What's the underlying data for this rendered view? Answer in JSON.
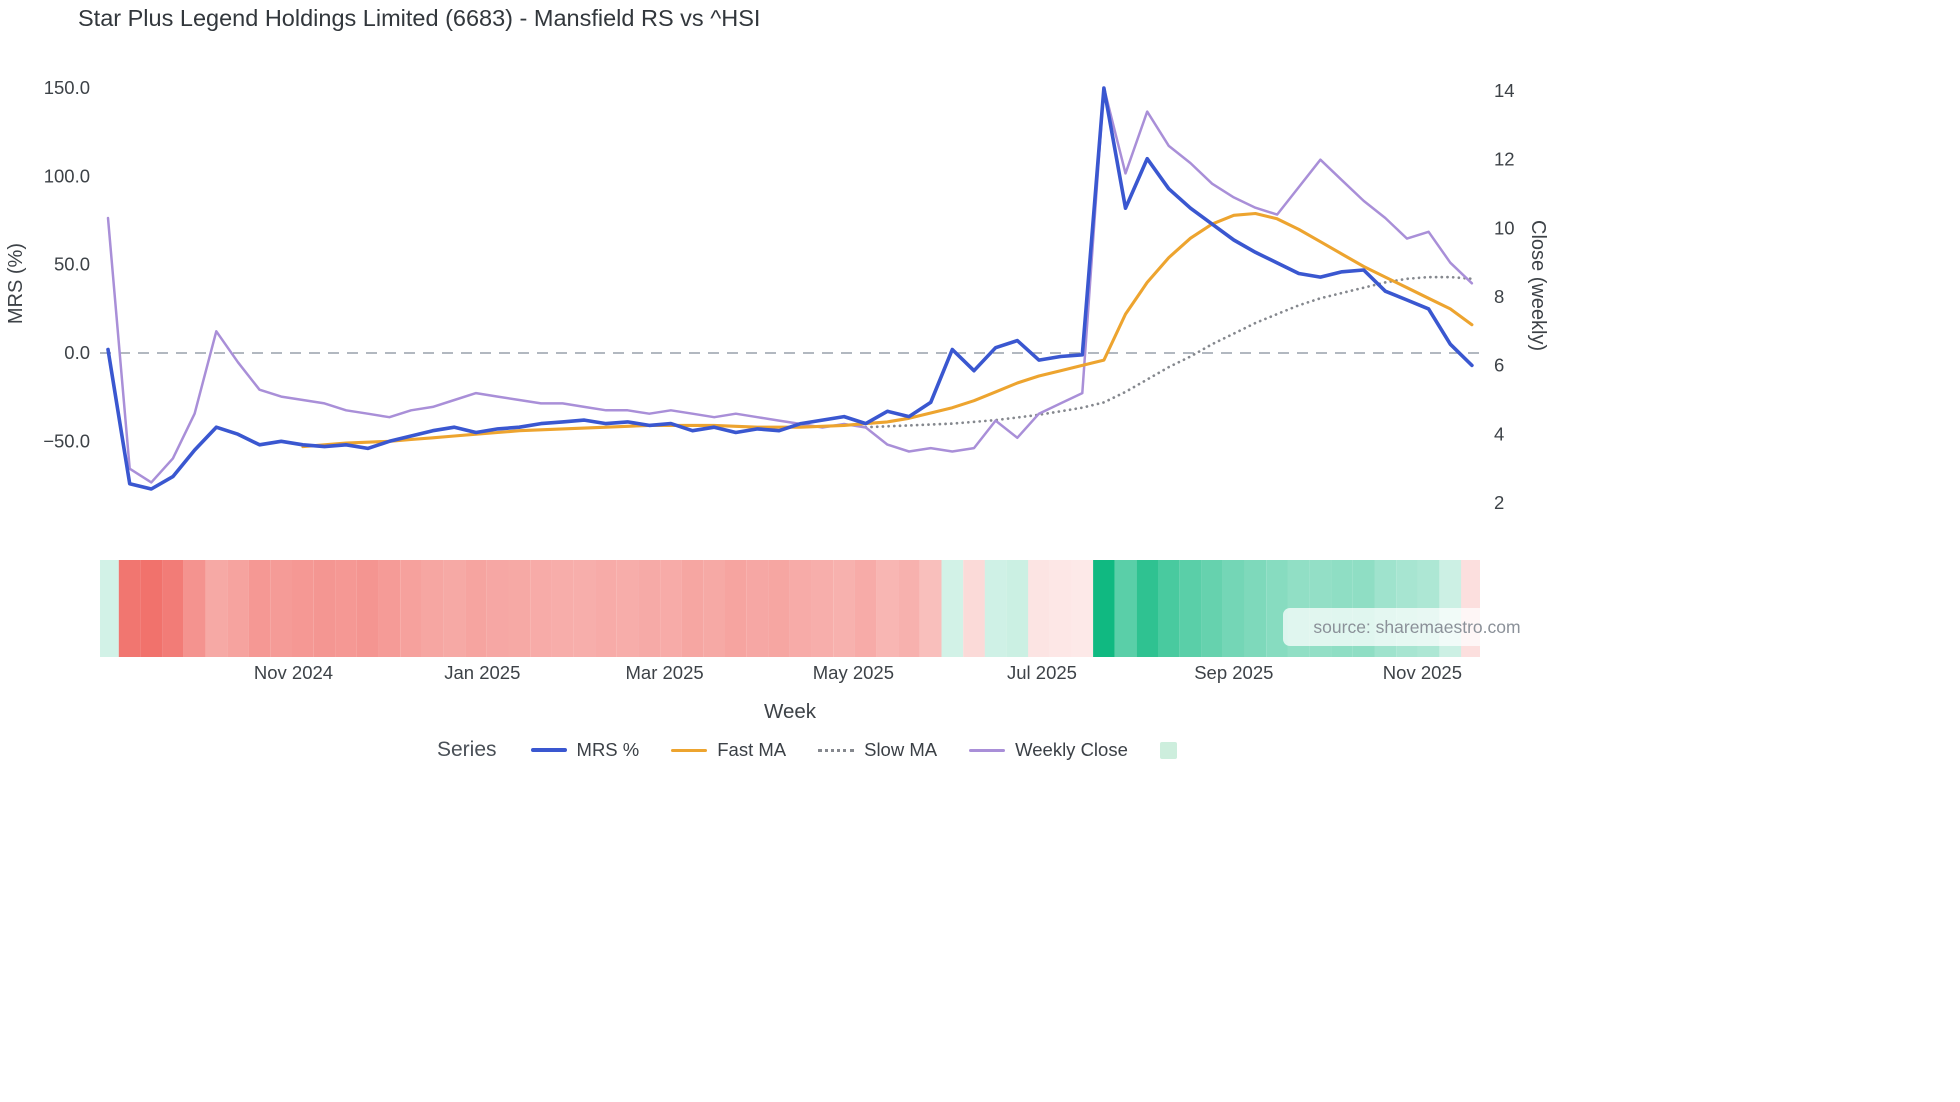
{
  "page": {
    "source_label": "source: sharemaestro.com"
  },
  "legend": {
    "series_title": "Series",
    "heatmap_swatch_color": "#cdeedd"
  },
  "chart_data": {
    "type": "line",
    "title": "Star Plus Legend Holdings Limited (6683) - Mansfield RS vs ^HSI",
    "xlabel": "Week",
    "ylabel_left": "MRS (%)",
    "ylabel_right": "Close (weekly)",
    "x_weekly_dates": [
      "2024-09-02",
      "2024-09-09",
      "2024-09-16",
      "2024-09-23",
      "2024-09-30",
      "2024-10-07",
      "2024-10-14",
      "2024-10-21",
      "2024-10-28",
      "2024-11-04",
      "2024-11-11",
      "2024-11-18",
      "2024-11-25",
      "2024-12-02",
      "2024-12-09",
      "2024-12-16",
      "2024-12-23",
      "2024-12-30",
      "2025-01-06",
      "2025-01-13",
      "2025-01-20",
      "2025-01-27",
      "2025-02-03",
      "2025-02-10",
      "2025-02-17",
      "2025-02-24",
      "2025-03-03",
      "2025-03-10",
      "2025-03-17",
      "2025-03-24",
      "2025-03-31",
      "2025-04-07",
      "2025-04-14",
      "2025-04-21",
      "2025-04-28",
      "2025-05-05",
      "2025-05-12",
      "2025-05-19",
      "2025-05-26",
      "2025-06-02",
      "2025-06-09",
      "2025-06-16",
      "2025-06-23",
      "2025-06-30",
      "2025-07-07",
      "2025-07-14",
      "2025-07-21",
      "2025-07-28",
      "2025-08-04",
      "2025-08-11",
      "2025-08-18",
      "2025-08-25",
      "2025-09-01",
      "2025-09-08",
      "2025-09-15",
      "2025-09-22",
      "2025-09-29",
      "2025-10-06",
      "2025-10-13",
      "2025-10-20",
      "2025-10-27",
      "2025-11-03",
      "2025-11-10",
      "2025-11-17"
    ],
    "series": [
      {
        "name": "MRS %",
        "axis": "left",
        "color": "#3a57d0",
        "line": "solid",
        "values": [
          2,
          -74,
          -77,
          -70,
          -55,
          -42,
          -46,
          -52,
          -50,
          -52,
          -53,
          -52,
          -54,
          -50,
          -47,
          -44,
          -42,
          -45,
          -43,
          -42,
          -40,
          -39,
          -38,
          -40,
          -39,
          -41,
          -40,
          -44,
          -42,
          -45,
          -43,
          -44,
          -40,
          -38,
          -36,
          -40,
          -33,
          -36,
          -28,
          2,
          -10,
          3,
          7,
          -4,
          -2,
          -1,
          150,
          82,
          110,
          93,
          82,
          73,
          64,
          57,
          51,
          45,
          43,
          46,
          47,
          35,
          30,
          25,
          5,
          -7
        ]
      },
      {
        "name": "Fast MA",
        "axis": "left",
        "color": "#eda42f",
        "line": "solid",
        "values": [
          null,
          null,
          null,
          null,
          null,
          null,
          null,
          null,
          null,
          -53,
          -52,
          -51,
          -50.5,
          -50,
          -49,
          -48,
          -47,
          -46,
          -45,
          -44,
          -43.5,
          -43,
          -42.5,
          -42,
          -41.5,
          -41,
          -41,
          -41,
          -41,
          -41.5,
          -42,
          -42,
          -42,
          -41.5,
          -41,
          -40,
          -39,
          -37,
          -34,
          -31,
          -27,
          -22,
          -17,
          -13,
          -10,
          -7,
          -4,
          22,
          40,
          54,
          65,
          73,
          78,
          79,
          76,
          70,
          63,
          56,
          49,
          43,
          37,
          31,
          25,
          16
        ]
      },
      {
        "name": "Slow MA",
        "axis": "left",
        "color": "#85888e",
        "line": "dotted",
        "values": [
          null,
          null,
          null,
          null,
          null,
          null,
          null,
          null,
          null,
          null,
          null,
          null,
          null,
          null,
          null,
          null,
          null,
          null,
          null,
          null,
          null,
          null,
          null,
          null,
          null,
          null,
          null,
          null,
          null,
          null,
          null,
          null,
          null,
          null,
          null,
          -42,
          -41.5,
          -41,
          -40.5,
          -40,
          -39,
          -38,
          -36.5,
          -35,
          -33,
          -31,
          -28,
          -22,
          -15,
          -8,
          -2,
          5,
          11,
          17,
          22,
          27,
          31,
          34,
          37,
          40,
          42,
          43,
          43,
          42
        ]
      },
      {
        "name": "Weekly Close",
        "axis": "right",
        "color": "#a98fd8",
        "line": "solid",
        "values": [
          10.3,
          3.0,
          2.6,
          3.3,
          4.6,
          7.0,
          6.1,
          5.3,
          5.1,
          5.0,
          4.9,
          4.7,
          4.6,
          4.5,
          4.7,
          4.8,
          5.0,
          5.2,
          5.1,
          5.0,
          4.9,
          4.9,
          4.8,
          4.7,
          4.7,
          4.6,
          4.7,
          4.6,
          4.5,
          4.6,
          4.5,
          4.4,
          4.3,
          4.2,
          4.3,
          4.2,
          3.7,
          3.5,
          3.6,
          3.5,
          3.6,
          4.4,
          3.9,
          4.6,
          4.9,
          5.2,
          14.1,
          11.6,
          13.4,
          12.4,
          11.9,
          11.3,
          10.9,
          10.6,
          10.4,
          11.2,
          12.0,
          11.4,
          10.8,
          10.3,
          9.7,
          9.9,
          9.0,
          8.4
        ]
      }
    ],
    "left_axis": {
      "range": [
        -90,
        160
      ],
      "ticks": [
        150,
        100,
        50,
        0,
        -50
      ],
      "tick_labels": [
        "150.0",
        "100.0",
        "50.0",
        "0.0",
        "−50.0"
      ]
    },
    "right_axis": {
      "range": [
        1.5,
        14.5
      ],
      "ticks": [
        14,
        12,
        10,
        8,
        6,
        4,
        2
      ],
      "tick_labels": [
        "14",
        "12",
        "10",
        "8",
        "6",
        "4",
        "2"
      ]
    },
    "x_ticks": [
      {
        "label": "Nov 2024",
        "week": 8.57
      },
      {
        "label": "Jan 2025",
        "week": 17.29
      },
      {
        "label": "Mar 2025",
        "week": 25.71
      },
      {
        "label": "May 2025",
        "week": 34.43
      },
      {
        "label": "Jul 2025",
        "week": 43.14
      },
      {
        "label": "Sep 2025",
        "week": 52.0
      },
      {
        "label": "Nov 2025",
        "week": 60.71
      }
    ],
    "zero_line": {
      "value": 0,
      "style": "dashed",
      "color": "#98a1ab"
    },
    "heatmap_strip": {
      "basis": "MRS %",
      "positive_color": "16,185,129",
      "negative_color": "240,106,100"
    }
  }
}
